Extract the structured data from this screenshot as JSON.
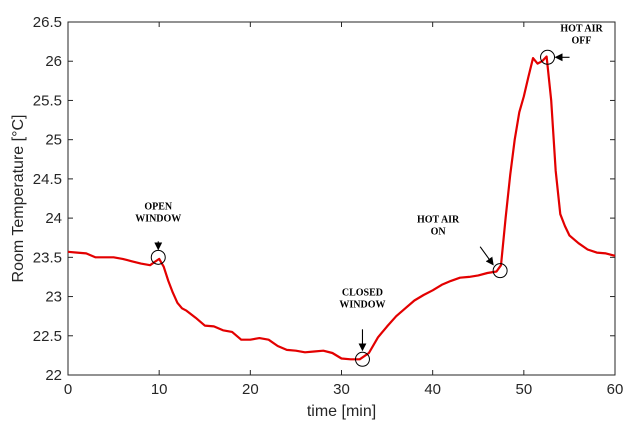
{
  "chart_data": {
    "type": "line",
    "title": "",
    "xlabel": "time [min]",
    "ylabel": "Room Temperature [°C]",
    "xlim": [
      0,
      60
    ],
    "ylim": [
      22,
      26.5
    ],
    "x_ticks": [
      "0",
      "10",
      "20",
      "30",
      "40",
      "50",
      "60"
    ],
    "y_ticks": [
      "22",
      "22.5",
      "23",
      "23.5",
      "24",
      "24.5",
      "25",
      "25.5",
      "26",
      "26.5"
    ],
    "grid": false,
    "line_color": "#e30000",
    "series": [
      {
        "x": [
          0,
          1,
          2,
          3,
          4,
          5,
          6,
          7,
          8,
          9,
          9.5,
          10,
          10.5,
          11,
          11.5,
          12,
          12.5,
          13,
          14,
          15,
          16,
          17,
          18,
          19,
          20,
          21,
          22,
          23,
          24,
          25,
          26,
          27,
          28,
          29,
          30,
          31,
          32,
          33,
          34,
          35,
          36,
          37,
          38,
          39,
          40,
          41,
          42,
          43,
          44,
          45,
          46,
          47,
          47.5,
          48,
          48.5,
          49,
          49.5,
          50,
          50.5,
          51,
          51.5,
          52,
          52.5,
          53,
          53.5,
          54,
          54.5,
          55,
          56,
          57,
          58,
          59,
          60
        ],
        "y": [
          23.57,
          23.56,
          23.55,
          23.5,
          23.5,
          23.5,
          23.48,
          23.45,
          23.42,
          23.4,
          23.44,
          23.48,
          23.38,
          23.2,
          23.05,
          22.92,
          22.85,
          22.82,
          22.73,
          22.63,
          22.62,
          22.57,
          22.55,
          22.45,
          22.45,
          22.47,
          22.45,
          22.37,
          22.32,
          22.31,
          22.29,
          22.3,
          22.31,
          22.28,
          22.21,
          22.2,
          22.2,
          22.28,
          22.48,
          22.62,
          22.75,
          22.85,
          22.95,
          23.02,
          23.08,
          23.15,
          23.2,
          23.24,
          23.25,
          23.27,
          23.3,
          23.32,
          23.4,
          24.0,
          24.55,
          25.0,
          25.35,
          25.55,
          25.8,
          26.04,
          25.97,
          26.0,
          26.06,
          25.5,
          24.6,
          24.05,
          23.9,
          23.78,
          23.68,
          23.6,
          23.56,
          23.55,
          23.52
        ]
      }
    ],
    "annotations": [
      {
        "lines": [
          "OPEN",
          "WINDOW"
        ],
        "x": 9.9,
        "y": 23.5
      },
      {
        "lines": [
          "CLOSED",
          "WINDOW"
        ],
        "x": 32.3,
        "y": 22.2
      },
      {
        "lines": [
          "HOT AIR",
          "ON"
        ],
        "x": 47.4,
        "y": 23.33
      },
      {
        "lines": [
          "HOT AIR",
          "OFF"
        ],
        "x": 52.6,
        "y": 26.05
      }
    ]
  }
}
